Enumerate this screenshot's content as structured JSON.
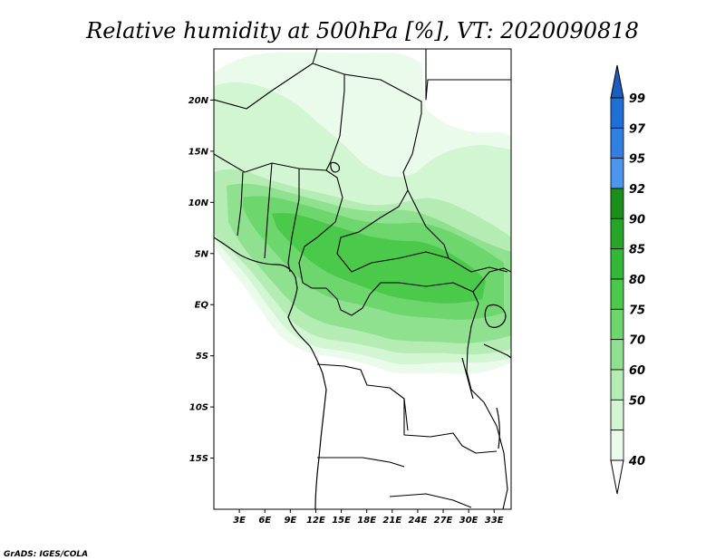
{
  "title": "Relative humidity at 500hPa [%], VT: 2020090818",
  "credit": "GrADS: IGES/COLA",
  "map": {
    "lat_labels": [
      "20N",
      "15N",
      "10N",
      "5N",
      "EQ",
      "5S",
      "10S",
      "15S"
    ],
    "lat_values": [
      20,
      15,
      10,
      5,
      0,
      -5,
      -10,
      -15
    ],
    "lon_labels": [
      "3E",
      "6E",
      "9E",
      "12E",
      "15E",
      "18E",
      "21E",
      "24E",
      "27E",
      "30E",
      "33E"
    ],
    "lon_values": [
      3,
      6,
      9,
      12,
      15,
      18,
      21,
      24,
      27,
      30,
      33
    ],
    "lon_range": [
      0,
      35
    ],
    "lat_range": [
      -20,
      25
    ]
  },
  "colorbar": {
    "labels": [
      "99",
      "97",
      "95",
      "92",
      "90",
      "85",
      "80",
      "75",
      "70",
      "60",
      "50",
      "40"
    ],
    "colors": [
      "#1e6fd6",
      "#2f80e0",
      "#4a97ec",
      "#1a8f1a",
      "#27a527",
      "#35b835",
      "#4ac94a",
      "#6dd66d",
      "#8fe08f",
      "#b4ecb4",
      "#d2f5d2",
      "#ebfbeb"
    ],
    "top_arrow_color": "#1a5fc0",
    "bottom_arrow_color": "#ffffff"
  },
  "humidity_colors": {
    "c40": "#ebfbeb",
    "c50": "#d2f5d2",
    "c60": "#b4ecb4",
    "c70": "#8fe08f",
    "c75": "#6dd66d",
    "c80": "#4ac94a"
  }
}
